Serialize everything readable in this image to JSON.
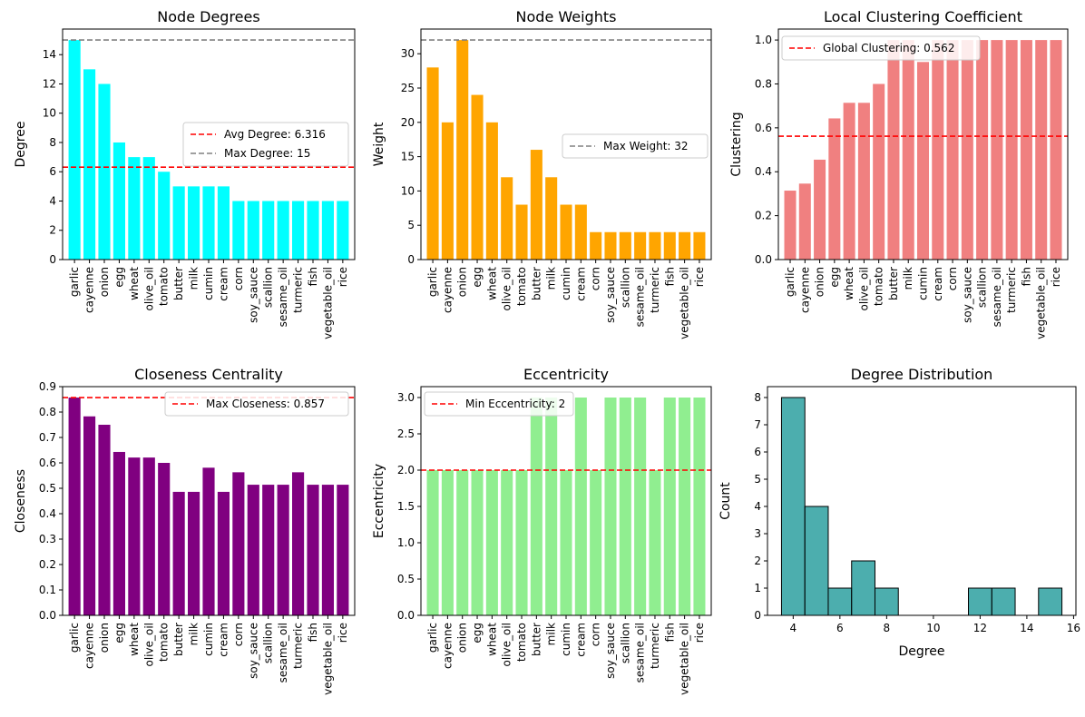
{
  "chart_data": [
    {
      "type": "bar",
      "title": "Node Degrees",
      "xlabel": "",
      "ylabel": "Degree",
      "categories": [
        "garlic",
        "cayenne",
        "onion",
        "egg",
        "wheat",
        "olive_oil",
        "tomato",
        "butter",
        "milk",
        "cumin",
        "cream",
        "corn",
        "soy_sauce",
        "scallion",
        "sesame_oil",
        "turmeric",
        "fish",
        "vegetable_oil",
        "rice"
      ],
      "values": [
        15,
        13,
        12,
        8,
        7,
        7,
        6,
        5,
        5,
        5,
        5,
        4,
        4,
        4,
        4,
        4,
        4,
        4,
        4
      ],
      "color": "#00ffff",
      "ylim": [
        0,
        15.75
      ],
      "yticks": [
        "0",
        "2",
        "4",
        "6",
        "8",
        "10",
        "12",
        "14"
      ],
      "grid": false,
      "legend_position": "center-right",
      "reference_lines": [
        {
          "label": "Avg Degree: 6.316",
          "value": 6.316,
          "color": "#ff0000"
        },
        {
          "label": "Max Degree: 15",
          "value": 15,
          "color": "#808080"
        }
      ]
    },
    {
      "type": "bar",
      "title": "Node Weights",
      "xlabel": "",
      "ylabel": "Weight",
      "categories": [
        "garlic",
        "cayenne",
        "onion",
        "egg",
        "wheat",
        "olive_oil",
        "tomato",
        "butter",
        "milk",
        "cumin",
        "cream",
        "corn",
        "soy_sauce",
        "scallion",
        "sesame_oil",
        "turmeric",
        "fish",
        "vegetable_oil",
        "rice"
      ],
      "values": [
        28,
        20,
        32,
        24,
        20,
        12,
        8,
        16,
        12,
        8,
        8,
        4,
        4,
        4,
        4,
        4,
        4,
        4,
        4
      ],
      "color": "#ffa500",
      "ylim": [
        0,
        33.6
      ],
      "yticks": [
        "0",
        "5",
        "10",
        "15",
        "20",
        "25",
        "30"
      ],
      "grid": false,
      "legend_position": "center-right",
      "reference_lines": [
        {
          "label": "Max Weight: 32",
          "value": 32,
          "color": "#808080"
        }
      ]
    },
    {
      "type": "bar",
      "title": "Local Clustering Coefficient",
      "xlabel": "",
      "ylabel": "Clustering",
      "categories": [
        "garlic",
        "cayenne",
        "onion",
        "egg",
        "wheat",
        "olive_oil",
        "tomato",
        "butter",
        "milk",
        "cumin",
        "cream",
        "corn",
        "soy_sauce",
        "scallion",
        "sesame_oil",
        "turmeric",
        "fish",
        "vegetable_oil",
        "rice"
      ],
      "values": [
        0.314,
        0.346,
        0.455,
        0.643,
        0.714,
        0.714,
        0.8,
        1.0,
        1.0,
        0.9,
        1.0,
        1.0,
        1.0,
        1.0,
        1.0,
        1.0,
        1.0,
        1.0,
        1.0
      ],
      "color": "#f08080",
      "ylim": [
        0,
        1.05
      ],
      "yticks": [
        "0.0",
        "0.2",
        "0.4",
        "0.6",
        "0.8",
        "1.0"
      ],
      "grid": false,
      "legend_position": "top-left",
      "reference_lines": [
        {
          "label": "Global Clustering: 0.562",
          "value": 0.562,
          "color": "#ff0000"
        }
      ]
    },
    {
      "type": "bar",
      "title": "Closeness Centrality",
      "xlabel": "",
      "ylabel": "Closeness",
      "categories": [
        "garlic",
        "cayenne",
        "onion",
        "egg",
        "wheat",
        "olive_oil",
        "tomato",
        "butter",
        "milk",
        "cumin",
        "cream",
        "corn",
        "soy_sauce",
        "scallion",
        "sesame_oil",
        "turmeric",
        "fish",
        "vegetable_oil",
        "rice"
      ],
      "values": [
        0.857,
        0.783,
        0.75,
        0.643,
        0.621,
        0.621,
        0.6,
        0.486,
        0.486,
        0.581,
        0.486,
        0.563,
        0.514,
        0.514,
        0.514,
        0.563,
        0.514,
        0.514,
        0.514
      ],
      "color": "#800080",
      "ylim": [
        0,
        0.9
      ],
      "yticks": [
        "0.0",
        "0.1",
        "0.2",
        "0.3",
        "0.4",
        "0.5",
        "0.6",
        "0.7",
        "0.8",
        "0.9"
      ],
      "grid": false,
      "legend_position": "top-right",
      "reference_lines": [
        {
          "label": "Max Closeness: 0.857",
          "value": 0.857,
          "color": "#ff0000"
        }
      ]
    },
    {
      "type": "bar",
      "title": "Eccentricity",
      "xlabel": "",
      "ylabel": "Eccentricity",
      "categories": [
        "garlic",
        "cayenne",
        "onion",
        "egg",
        "wheat",
        "olive_oil",
        "tomato",
        "butter",
        "milk",
        "cumin",
        "cream",
        "corn",
        "soy_sauce",
        "scallion",
        "sesame_oil",
        "turmeric",
        "fish",
        "vegetable_oil",
        "rice"
      ],
      "values": [
        2,
        2,
        2,
        2,
        2,
        2,
        2,
        3,
        3,
        2,
        3,
        2,
        3,
        3,
        3,
        2,
        3,
        3,
        3
      ],
      "color": "#90ee90",
      "ylim": [
        0,
        3.15
      ],
      "yticks": [
        "0.0",
        "0.5",
        "1.0",
        "1.5",
        "2.0",
        "2.5",
        "3.0"
      ],
      "grid": false,
      "legend_position": "top-left",
      "reference_lines": [
        {
          "label": "Min Eccentricity: 2",
          "value": 2,
          "color": "#ff0000"
        }
      ]
    },
    {
      "type": "histogram",
      "title": "Degree Distribution",
      "xlabel": "Degree",
      "ylabel": "Count",
      "bins": [
        {
          "start": 3.5,
          "end": 4.5,
          "count": 8
        },
        {
          "start": 4.5,
          "end": 5.5,
          "count": 4
        },
        {
          "start": 5.5,
          "end": 6.5,
          "count": 1
        },
        {
          "start": 6.5,
          "end": 7.5,
          "count": 2
        },
        {
          "start": 7.5,
          "end": 8.5,
          "count": 1
        },
        {
          "start": 8.5,
          "end": 9.5,
          "count": 0
        },
        {
          "start": 9.5,
          "end": 10.5,
          "count": 0
        },
        {
          "start": 10.5,
          "end": 11.5,
          "count": 0
        },
        {
          "start": 11.5,
          "end": 12.5,
          "count": 1
        },
        {
          "start": 12.5,
          "end": 13.5,
          "count": 1
        },
        {
          "start": 13.5,
          "end": 14.5,
          "count": 0
        },
        {
          "start": 14.5,
          "end": 15.5,
          "count": 1
        }
      ],
      "color": "#008b8b",
      "edge_color": "#000000",
      "xlim": [
        2.9,
        16.1
      ],
      "ylim": [
        0,
        8.4
      ],
      "xticks": [
        4,
        6,
        8,
        10,
        12,
        14,
        16
      ],
      "yticks": [
        0,
        1,
        2,
        3,
        4,
        5,
        6,
        7,
        8
      ],
      "grid": false
    }
  ]
}
